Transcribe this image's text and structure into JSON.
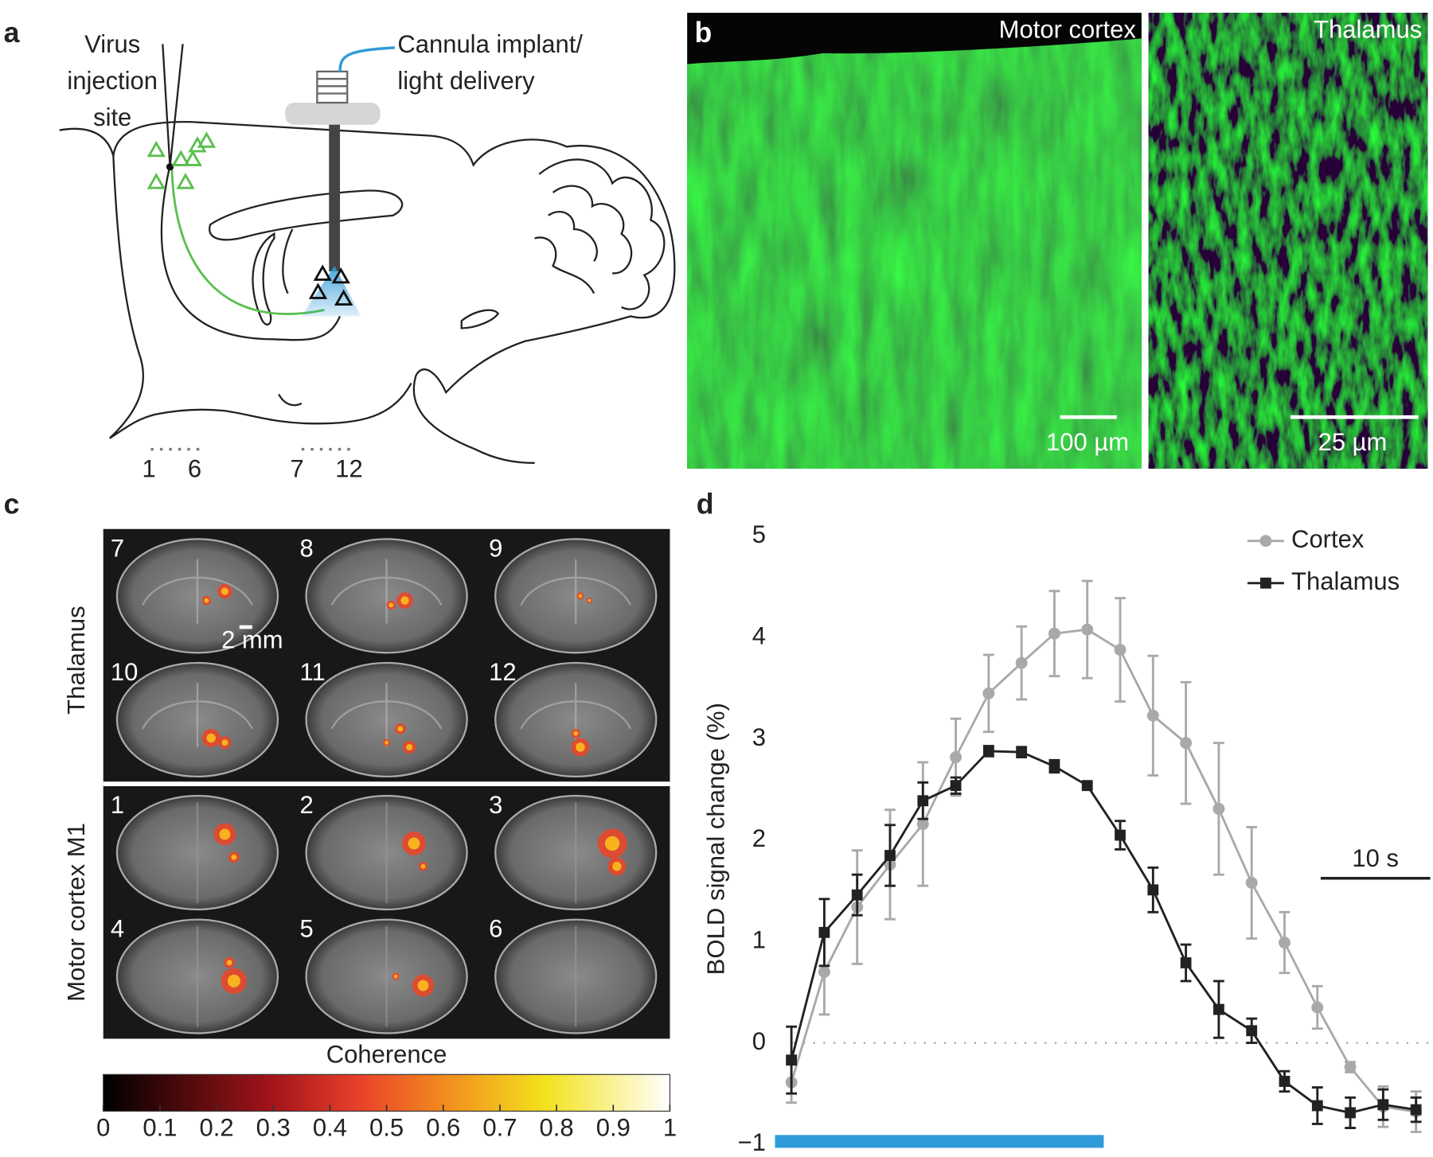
{
  "panel_a": {
    "label": "a",
    "injection_label": [
      "Virus",
      "injection",
      "site"
    ],
    "cannula_label": [
      "Cannula implant/",
      "light delivery"
    ],
    "slice_ranges": [
      [
        "1",
        "6"
      ],
      [
        "7",
        "12"
      ]
    ]
  },
  "panel_b": {
    "label": "b",
    "images": [
      {
        "title": "Motor cortex",
        "scale": "100 µm"
      },
      {
        "title": "Thalamus",
        "scale": "25 µm"
      }
    ]
  },
  "panel_c": {
    "label": "c",
    "rows": [
      {
        "region": "Thalamus",
        "slices": [
          "7",
          "8",
          "9",
          "10",
          "11",
          "12"
        ],
        "scale": "2 mm"
      },
      {
        "region": "Motor cortex M1",
        "slices": [
          "1",
          "2",
          "3",
          "4",
          "5",
          "6"
        ]
      }
    ],
    "colorbar": {
      "title": "Coherence",
      "lim": [
        0,
        1
      ],
      "ticks": [
        0,
        0.1,
        0.2,
        0.3,
        0.4,
        0.5,
        0.6,
        0.7,
        0.8,
        0.9,
        1
      ]
    }
  },
  "chart_data": {
    "type": "line",
    "panel_label": "d",
    "ylabel": "BOLD signal change (%)",
    "x": [
      0,
      3,
      6,
      9,
      12,
      15,
      18,
      21,
      24,
      27,
      30,
      33,
      36,
      39,
      42,
      45,
      48,
      51,
      54,
      57
    ],
    "xlim": [
      -1.5,
      58.3
    ],
    "ylim": [
      -1,
      5
    ],
    "yticks": [
      {
        "value": -1,
        "label": "−1"
      },
      0,
      1,
      2,
      3,
      4,
      5
    ],
    "zero_line": true,
    "legend": "upper right",
    "series": [
      {
        "name": "Cortex",
        "color": "#a9a9a9",
        "marker": "circle",
        "values": [
          -0.39,
          0.7,
          1.34,
          1.76,
          2.16,
          2.82,
          3.45,
          3.75,
          4.04,
          4.08,
          3.88,
          3.23,
          2.96,
          2.31,
          1.58,
          0.99,
          0.35,
          -0.24,
          -0.63,
          -0.68
        ],
        "errors": [
          0.2,
          0.42,
          0.56,
          0.54,
          0.61,
          0.38,
          0.38,
          0.36,
          0.42,
          0.48,
          0.51,
          0.59,
          0.6,
          0.65,
          0.55,
          0.3,
          0.21,
          0.05,
          0.2,
          0.2
        ]
      },
      {
        "name": "Thalamus",
        "color": "#222222",
        "marker": "square",
        "values": [
          -0.17,
          1.09,
          1.46,
          1.85,
          2.39,
          2.54,
          2.88,
          2.87,
          2.73,
          2.54,
          2.05,
          1.51,
          0.79,
          0.33,
          0.12,
          -0.38,
          -0.62,
          -0.69,
          -0.61,
          -0.66
        ],
        "errors": [
          0.33,
          0.33,
          0.2,
          0.3,
          0.18,
          0.08,
          0.05,
          0.05,
          0.06,
          0.03,
          0.14,
          0.22,
          0.18,
          0.28,
          0.12,
          0.1,
          0.18,
          0.15,
          0.15,
          0.12
        ]
      }
    ],
    "stimulus": {
      "range": [
        -1.5,
        28.5
      ],
      "color": "#2f9bd8"
    },
    "scalebar": {
      "label": "10 s",
      "length": 10
    }
  }
}
